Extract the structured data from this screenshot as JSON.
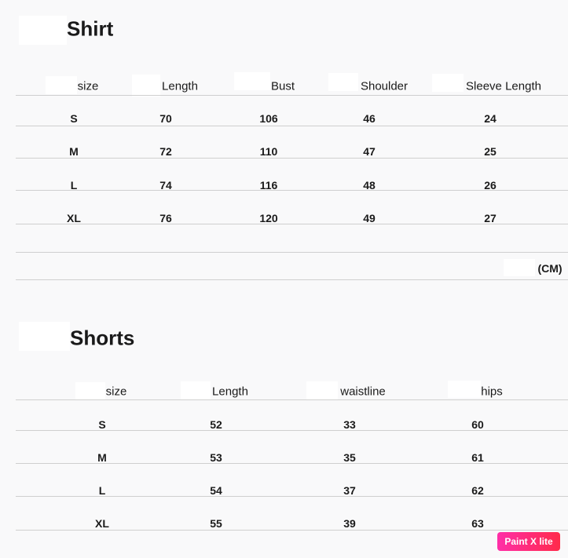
{
  "shirt": {
    "title": "Shirt",
    "headers": [
      "size",
      "Length",
      "Bust",
      "Shoulder",
      "Sleeve Length"
    ],
    "rows": [
      [
        "S",
        "70",
        "106",
        "46",
        "24"
      ],
      [
        "M",
        "72",
        "110",
        "47",
        "25"
      ],
      [
        "L",
        "74",
        "116",
        "48",
        "26"
      ],
      [
        "XL",
        "76",
        "120",
        "49",
        "27"
      ]
    ],
    "unit": "(CM)"
  },
  "shorts": {
    "title": "Shorts",
    "headers": [
      "size",
      "Length",
      "waistline",
      "hips"
    ],
    "rows": [
      [
        "S",
        "52",
        "33",
        "60"
      ],
      [
        "M",
        "53",
        "35",
        "61"
      ],
      [
        "L",
        "54",
        "37",
        "62"
      ],
      [
        "XL",
        "55",
        "39",
        "63"
      ]
    ]
  },
  "watermark": "Paint X lite"
}
